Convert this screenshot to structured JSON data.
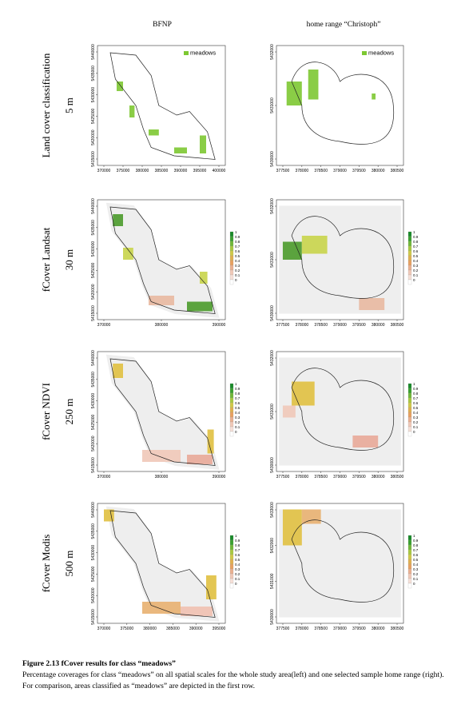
{
  "header": {
    "columns": [
      "BFNP",
      "home range “Christoph”"
    ]
  },
  "rows": [
    {
      "label": "Land cover classification",
      "resolution": "5 m",
      "panels": [
        {
          "xticks": [
            370000,
            375000,
            380000,
            385000,
            390000,
            395000,
            400000
          ],
          "yticks": [
            5440000,
            5435000,
            5430000,
            5425000,
            5420000,
            5415000
          ],
          "legend": "meadows"
        },
        {
          "xticks": [
            377500,
            378000,
            378500,
            379000,
            379500,
            380000,
            380500
          ],
          "yticks": [
            5432000,
            5431000,
            5430000
          ],
          "legend": "meadows"
        }
      ]
    },
    {
      "label": "fCover Landsat",
      "resolution": "30 m",
      "panels": [
        {
          "xticks": [
            370000,
            380000,
            390000
          ],
          "yticks": [
            5440000,
            5435000,
            5430000,
            5425000,
            5420000,
            5415000
          ],
          "legend": [
            "1",
            "0.9",
            "0.8",
            "0.7",
            "0.6",
            "0.5",
            "0.4",
            "0.3",
            "0.2",
            "0.1",
            "0"
          ]
        },
        {
          "xticks": [
            377500,
            378000,
            378500,
            379000,
            379500,
            380000,
            380500
          ],
          "yticks": [
            5432000,
            5431000,
            5430000
          ],
          "legend": [
            "1",
            "0.9",
            "0.8",
            "0.7",
            "0.6",
            "0.5",
            "0.4",
            "0.3",
            "0.2",
            "0.1",
            "0"
          ]
        }
      ]
    },
    {
      "label": "fCover NDVI",
      "resolution": "250 m",
      "panels": [
        {
          "xticks": [
            370000,
            380000,
            390000
          ],
          "yticks": [
            5440000,
            5435000,
            5430000,
            5425000,
            5420000,
            5415000
          ],
          "legend": [
            "1",
            "0.9",
            "0.8",
            "0.7",
            "0.6",
            "0.5",
            "0.4",
            "0.3",
            "0.2",
            "0.1",
            "0"
          ]
        },
        {
          "xticks": [
            377500,
            378000,
            378500,
            379000,
            379500,
            380000,
            380500
          ],
          "yticks": [
            5432000,
            5431000,
            5430000
          ],
          "legend": [
            "1",
            "0.9",
            "0.8",
            "0.7",
            "0.6",
            "0.5",
            "0.4",
            "0.3",
            "0.2",
            "0.1",
            "0"
          ]
        }
      ]
    },
    {
      "label": "fCover Modis",
      "resolution": "500 m",
      "panels": [
        {
          "xticks": [
            370000,
            375000,
            380000,
            385000,
            390000,
            395000
          ],
          "yticks": [
            5440000,
            5435000,
            5430000,
            5425000,
            5420000,
            5415000
          ],
          "legend": [
            "1",
            "0.9",
            "0.8",
            "0.7",
            "0.6",
            "0.5",
            "0.4",
            "0.3",
            "0.2",
            "0.1",
            "0"
          ]
        },
        {
          "xticks": [
            377500,
            378000,
            378500,
            379000,
            379500,
            380000,
            380500
          ],
          "yticks": [
            5433000,
            5432000,
            5431000,
            5430000
          ],
          "legend": [
            "1",
            "0.9",
            "0.8",
            "0.7",
            "0.6",
            "0.5",
            "0.4",
            "0.3",
            "0.2",
            "0.1",
            "0"
          ]
        }
      ]
    }
  ],
  "caption": {
    "title": "Figure 2.13 fCover results for class “meadows”",
    "text": "Percentage coverages for class “meadows” on all spatial scales for the whole study area(left) and one selected sample home range (right). For comparison, areas classified as “meadows” are depicted in the first row."
  }
}
